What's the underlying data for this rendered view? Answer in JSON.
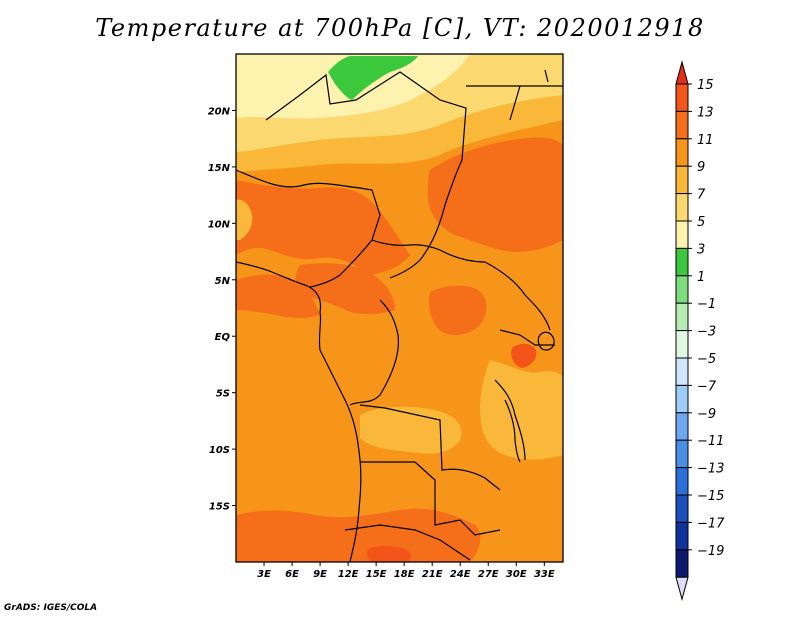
{
  "title": "Temperature at 700hPa [C], VT: 2020012918",
  "credit": "GrADS: IGES/COLA",
  "map": {
    "variable": "Temperature at 700hPa",
    "units": "C",
    "valid_time": "2020012918",
    "lon_range": [
      0,
      35
    ],
    "lat_range": [
      -20,
      25
    ],
    "lat_ticks": [
      {
        "value": 20,
        "label": "20N"
      },
      {
        "value": 15,
        "label": "15N"
      },
      {
        "value": 10,
        "label": "10N"
      },
      {
        "value": 5,
        "label": "5N"
      },
      {
        "value": 0,
        "label": "EQ"
      },
      {
        "value": -5,
        "label": "5S"
      },
      {
        "value": -10,
        "label": "10S"
      },
      {
        "value": -15,
        "label": "15S"
      }
    ],
    "lon_ticks": [
      {
        "value": 3,
        "label": "3E"
      },
      {
        "value": 6,
        "label": "6E"
      },
      {
        "value": 9,
        "label": "9E"
      },
      {
        "value": 12,
        "label": "12E"
      },
      {
        "value": 15,
        "label": "15E"
      },
      {
        "value": 18,
        "label": "18E"
      },
      {
        "value": 21,
        "label": "21E"
      },
      {
        "value": 24,
        "label": "24E"
      },
      {
        "value": 27,
        "label": "27E"
      },
      {
        "value": 30,
        "label": "30E"
      },
      {
        "value": 33,
        "label": "33E"
      }
    ]
  },
  "colorbar": {
    "labels": [
      "15",
      "13",
      "11",
      "9",
      "7",
      "5",
      "3",
      "1",
      "−1",
      "−3",
      "−5",
      "−7",
      "−9",
      "−11",
      "−13",
      "−15",
      "−17",
      "−19"
    ],
    "colors_top_to_bottom": [
      "#e52b1a",
      "#f2541a",
      "#f56e1a",
      "#f7951b",
      "#f9b83a",
      "#fcd870",
      "#fdf2ae",
      "#3cc83c",
      "#7ddc7d",
      "#b4ecb4",
      "#e1f7e1",
      "#cfe6fc",
      "#9fcdf8",
      "#6ea9f0",
      "#4b8ee6",
      "#2c6fd8",
      "#1d4fbd",
      "#12329b",
      "#0c1a6e"
    ],
    "under_color": "#dcdcf8"
  }
}
